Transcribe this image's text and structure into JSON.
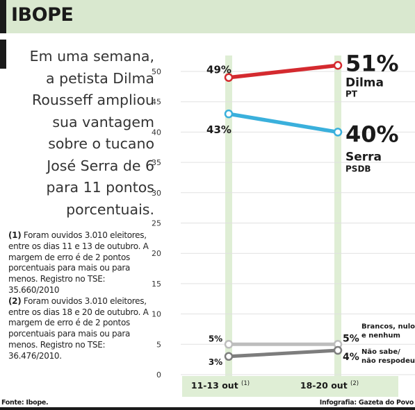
{
  "header": {
    "title": "IBOPE"
  },
  "lede_lines": [
    "Em uma semana,",
    "a petista Dilma",
    "Rousseff ampliou",
    "sua vantagem",
    "sobre o tucano",
    "José Serra de 6",
    "para 11 pontos",
    "porcentuais."
  ],
  "notes": [
    {
      "marker": "(1)",
      "text": " Foram ouvidos 3.010 eleitores, entre os dias 11 e 13 de outubro. A margem de erro é de 2 pontos porcentuais para mais ou para menos. Registro no TSE: 35.660/2010"
    },
    {
      "marker": "(2)",
      "text": " Foram ouvidos 3.010 eleitores, entre os dias 18 e 20 de outubro. A margem de erro é de 2 pontos porcentuais para mais ou para menos. Registro no TSE: 36.476/2010."
    }
  ],
  "footer": {
    "source": "Fonte: Ibope.",
    "credit": "Infografia: Gazeta do Povo"
  },
  "chart_data": {
    "type": "line",
    "title": "",
    "xlabel": "",
    "ylabel": "",
    "ylim": [
      0,
      50
    ],
    "yticks": [
      0,
      5,
      10,
      15,
      20,
      25,
      30,
      35,
      40,
      45,
      50
    ],
    "grid": true,
    "categories": [
      {
        "label": "11-13 out",
        "note": "(1)"
      },
      {
        "label": "18-20 out",
        "note": "(2)"
      }
    ],
    "series": [
      {
        "name": "Dilma",
        "party": "PT",
        "values": [
          49,
          51
        ],
        "value_labels": [
          "49%",
          "51%"
        ],
        "color": "#d42a2f"
      },
      {
        "name": "Serra",
        "party": "PSDB",
        "values": [
          43,
          40
        ],
        "value_labels": [
          "43%",
          "40%"
        ],
        "color": "#3ab0dc"
      },
      {
        "name": "Brancos, nulos e nenhum",
        "name_lines": [
          "Brancos, nulos",
          "e nenhum"
        ],
        "values": [
          5,
          5
        ],
        "value_labels": [
          "5%",
          "5%"
        ],
        "color": "#bdbdbd"
      },
      {
        "name": "Não sabe/ não respodeu",
        "name_lines": [
          "Não sabe/",
          "não respodeu"
        ],
        "values": [
          3,
          4
        ],
        "value_labels": [
          "3%",
          "4%"
        ],
        "color": "#7d7d7d"
      }
    ]
  }
}
